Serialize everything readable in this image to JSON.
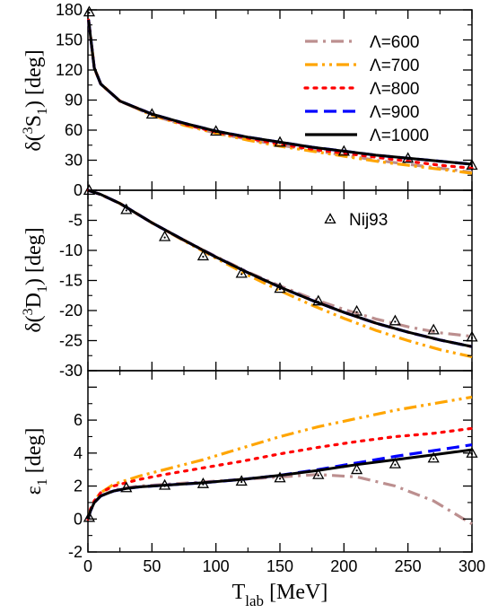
{
  "chart_data": {
    "type": "line",
    "xlabel": "T",
    "xlabel_sub": "lab",
    "xlabel_unit": "[MeV]",
    "xlim": [
      0,
      300
    ],
    "xticks": [
      0,
      50,
      100,
      150,
      200,
      250,
      300
    ],
    "xtick_labels": [
      "0",
      "50",
      "100",
      "150",
      "200",
      "250",
      "300"
    ],
    "legend": [
      {
        "label": "Λ=600",
        "color": "#bc8f8f",
        "dash": "dashdot"
      },
      {
        "label": "Λ=700",
        "color": "#ffa500",
        "dash": "dashdotdot"
      },
      {
        "label": "Λ=800",
        "color": "#ff0000",
        "dash": "dotted"
      },
      {
        "label": "Λ=900",
        "color": "#0000ff",
        "dash": "dashed"
      },
      {
        "label": "Λ=1000",
        "color": "#000000",
        "dash": "solid"
      }
    ],
    "data_legend": {
      "label": "Nij93",
      "marker": "triangle"
    },
    "panels": [
      {
        "ylabel": "δ(³S₁) [deg]",
        "ylim": [
          0,
          180
        ],
        "yticks": [
          0,
          30,
          60,
          90,
          120,
          150,
          180
        ],
        "ytick_labels": [
          "0",
          "30",
          "60",
          "90",
          "120",
          "150",
          "180"
        ],
        "x": [
          0.5,
          5,
          10,
          25,
          50,
          75,
          100,
          125,
          150,
          175,
          200,
          225,
          250,
          275,
          300
        ],
        "series": [
          {
            "name": "Λ=600",
            "values": [
              170,
              122,
              106,
              89,
              75,
              65,
              57,
              51,
              45,
              40,
              35,
              30,
              26,
              22,
              18
            ]
          },
          {
            "name": "Λ=700",
            "values": [
              170,
              122,
              106,
              89,
              75,
              65,
              57,
              50,
              44,
              39,
              34,
              29,
              25,
              21,
              17
            ]
          },
          {
            "name": "Λ=800",
            "values": [
              170,
              122,
              106,
              89,
              76,
              66,
              58,
              52,
              46,
              41,
              37,
              33,
              29,
              25,
              22
            ]
          },
          {
            "name": "Λ=900",
            "values": [
              170,
              122,
              106,
              89,
              76,
              67,
              59,
              53,
              48,
              43,
              39,
              35,
              32,
              29,
              26
            ]
          },
          {
            "name": "Λ=1000",
            "values": [
              170,
              122,
              106,
              89,
              76,
              67,
              59,
              53,
              48,
              43,
              39,
              35,
              32,
              29,
              26
            ]
          }
        ],
        "points": {
          "x": [
            1,
            50,
            100,
            150,
            200,
            250,
            300
          ],
          "y": [
            178,
            76,
            59,
            48,
            39,
            32,
            25
          ]
        }
      },
      {
        "ylabel": "δ(³D₁) [deg]",
        "ylim": [
          -30,
          0
        ],
        "yticks": [
          -30,
          -25,
          -20,
          -15,
          -10,
          -5,
          0
        ],
        "ytick_labels": [
          "-30",
          "-25",
          "-20",
          "-15",
          "-10",
          "-5",
          "0"
        ],
        "x": [
          0,
          10,
          25,
          50,
          75,
          100,
          125,
          150,
          175,
          200,
          225,
          250,
          275,
          300
        ],
        "series": [
          {
            "name": "Λ=600",
            "values": [
              0,
              -0.7,
              -2.2,
              -5.4,
              -8.3,
              -11.0,
              -13.6,
              -15.9,
              -18.0,
              -19.8,
              -21.4,
              -22.7,
              -23.7,
              -24.3
            ]
          },
          {
            "name": "Λ=700",
            "values": [
              0,
              -0.7,
              -2.2,
              -5.4,
              -8.4,
              -11.3,
              -14.1,
              -16.7,
              -19.1,
              -21.3,
              -23.3,
              -25.0,
              -26.5,
              -27.7
            ]
          },
          {
            "name": "Λ=800",
            "values": [
              0,
              -0.7,
              -2.2,
              -5.4,
              -8.3,
              -11.1,
              -13.7,
              -16.1,
              -18.3,
              -20.3,
              -22.1,
              -23.6,
              -24.9,
              -26.0
            ]
          },
          {
            "name": "Λ=900",
            "values": [
              0,
              -0.7,
              -2.2,
              -5.4,
              -8.3,
              -11.1,
              -13.7,
              -16.1,
              -18.3,
              -20.3,
              -22.1,
              -23.6,
              -24.9,
              -26.0
            ]
          },
          {
            "name": "Λ=1000",
            "values": [
              0,
              -0.7,
              -2.2,
              -5.4,
              -8.3,
              -11.1,
              -13.7,
              -16.1,
              -18.3,
              -20.3,
              -22.1,
              -23.6,
              -24.9,
              -26.0
            ]
          }
        ],
        "points": {
          "x": [
            1,
            30,
            60,
            90,
            120,
            150,
            180,
            210,
            240,
            270,
            300
          ],
          "y": [
            0,
            -3.2,
            -7.7,
            -10.9,
            -13.8,
            -16.3,
            -18.4,
            -20.1,
            -21.7,
            -23.2,
            -24.4
          ]
        }
      },
      {
        "ylabel": "ε₁ [deg]",
        "ylim": [
          -2,
          9
        ],
        "yticks": [
          -2,
          0,
          2,
          4,
          6,
          8
        ],
        "ytick_labels": [
          "-2",
          "0",
          "2",
          "4",
          "6",
          "8"
        ],
        "x": [
          0,
          2,
          5,
          10,
          20,
          30,
          40,
          60,
          90,
          120,
          150,
          180,
          210,
          240,
          270,
          300
        ],
        "series": [
          {
            "name": "Λ=600",
            "values": [
              0,
              0.5,
              1.0,
              1.4,
              1.75,
              1.9,
              2.0,
              2.1,
              2.25,
              2.4,
              2.55,
              2.7,
              2.55,
              2.0,
              1.1,
              -0.3
            ]
          },
          {
            "name": "Λ=700",
            "values": [
              0,
              0.6,
              1.1,
              1.6,
              2.1,
              2.35,
              2.6,
              3.0,
              3.6,
              4.3,
              5.0,
              5.6,
              6.1,
              6.6,
              7.0,
              7.4
            ]
          },
          {
            "name": "Λ=800",
            "values": [
              0,
              0.6,
              1.1,
              1.6,
              2.0,
              2.2,
              2.4,
              2.7,
              3.1,
              3.5,
              3.95,
              4.35,
              4.7,
              5.0,
              5.2,
              5.5
            ]
          },
          {
            "name": "Λ=900",
            "values": [
              0,
              0.5,
              1.0,
              1.4,
              1.7,
              1.85,
              1.95,
              2.05,
              2.2,
              2.4,
              2.65,
              3.0,
              3.4,
              3.8,
              4.15,
              4.5
            ]
          },
          {
            "name": "Λ=1000",
            "values": [
              0,
              0.5,
              1.0,
              1.4,
              1.7,
              1.85,
              1.95,
              2.05,
              2.2,
              2.4,
              2.65,
              2.95,
              3.3,
              3.6,
              3.9,
              4.2
            ]
          }
        ],
        "points": {
          "x": [
            1,
            30,
            60,
            90,
            120,
            150,
            180,
            210,
            240,
            270,
            300
          ],
          "y": [
            0.1,
            1.9,
            2.05,
            2.15,
            2.3,
            2.5,
            2.7,
            3.0,
            3.35,
            3.7,
            4.0
          ]
        }
      }
    ]
  }
}
